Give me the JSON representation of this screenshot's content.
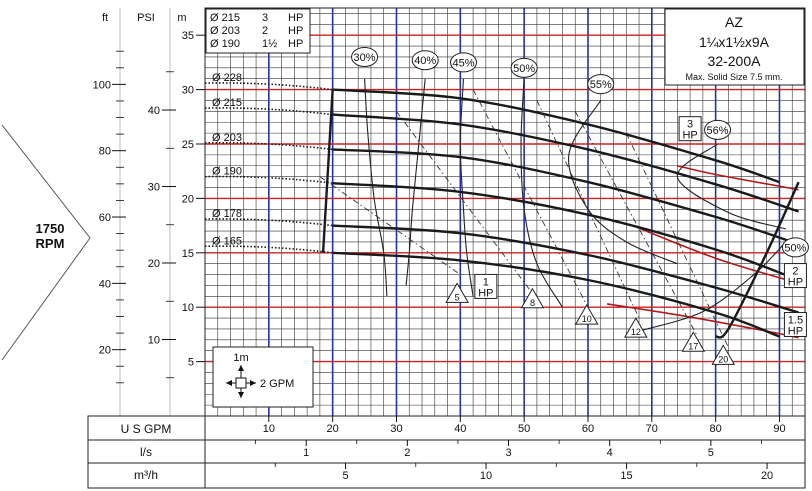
{
  "chart_data": {
    "type": "line",
    "model": {
      "name": "AZ",
      "size": "1¼x1½x9A",
      "code": "32-200A",
      "solid": "Max. Solid Size 7.5 mm."
    },
    "rpm": {
      "value": "1750",
      "unit": "RPM"
    },
    "motor_legend": [
      {
        "dia": "Ø 215",
        "hp": "3",
        "unit": "HP"
      },
      {
        "dia": "Ø 203",
        "hp": "2",
        "unit": "HP"
      },
      {
        "dia": "Ø 190",
        "hp": "1½",
        "unit": "HP"
      }
    ],
    "axes": {
      "head_m": {
        "label": "m",
        "ticks": [
          5,
          10,
          15,
          20,
          25,
          30,
          35
        ],
        "range": [
          0,
          37.5
        ]
      },
      "head_ft": {
        "label": "ft",
        "ticks": [
          20,
          40,
          60,
          80,
          100
        ]
      },
      "head_psi": {
        "label": "PSI",
        "ticks": [
          10,
          20,
          30,
          40
        ]
      },
      "flow_gpm": {
        "label": "U S GPM",
        "ticks": [
          10,
          20,
          30,
          40,
          50,
          60,
          70,
          80,
          90
        ],
        "range": [
          0,
          94
        ]
      },
      "flow_ls": {
        "label": "l/s",
        "ticks": [
          1,
          2,
          3,
          4,
          5
        ]
      },
      "flow_m3h": {
        "label": "m³/h",
        "ticks": [
          5,
          10,
          15,
          20
        ]
      }
    },
    "scale_box": {
      "head_label": "1m",
      "flow_label": "2 GPM"
    },
    "series": [
      {
        "name": "Ø 228",
        "x": [
          20,
          40,
          60,
          80,
          90
        ],
        "y": [
          30,
          29.2,
          26.8,
          23.5,
          21.5
        ]
      },
      {
        "name": "Ø 215",
        "x": [
          20,
          40,
          60,
          80,
          93
        ],
        "y": [
          27.7,
          26.8,
          24.5,
          21.3,
          18.8
        ]
      },
      {
        "name": "Ø 203",
        "x": [
          20,
          40,
          60,
          80,
          93
        ],
        "y": [
          24.5,
          23.8,
          21.5,
          18.3,
          15.8
        ]
      },
      {
        "name": "Ø 190",
        "x": [
          20,
          40,
          60,
          80,
          93
        ],
        "y": [
          21.4,
          20.6,
          18.5,
          15.3,
          12.5
        ]
      },
      {
        "name": "Ø 178",
        "x": [
          20,
          40,
          60,
          80,
          93
        ],
        "y": [
          17.5,
          16.8,
          14.8,
          11.8,
          9.5
        ]
      },
      {
        "name": "Ø 165",
        "x": [
          20,
          40,
          60,
          80,
          90
        ],
        "y": [
          15,
          14.3,
          12.5,
          9.5,
          7.3
        ]
      }
    ],
    "efficiency_labels": [
      {
        "text": "30%",
        "x": 25,
        "y": 33
      },
      {
        "text": "40%",
        "x": 34.5,
        "y": 32.7
      },
      {
        "text": "45%",
        "x": 40.5,
        "y": 32.5
      },
      {
        "text": "50%",
        "x": 50,
        "y": 32
      },
      {
        "text": "55%",
        "x": 62,
        "y": 30.5
      },
      {
        "text": "56%",
        "x": 80.3,
        "y": 26.3
      },
      {
        "text": "50%",
        "x": 92.5,
        "y": 15.5
      }
    ],
    "hp_labels": [
      {
        "hp": "3",
        "unit": "HP",
        "x": 76,
        "y": 26.5
      },
      {
        "hp": "2",
        "unit": "HP",
        "x": 92.5,
        "y": 13
      },
      {
        "hp": "1.5",
        "unit": "HP",
        "x": 92.5,
        "y": 8.5
      },
      {
        "hp": "1",
        "unit": "HP",
        "x": 44,
        "y": 12
      }
    ],
    "npsh_labels": [
      {
        "text": "5",
        "x": 39.5,
        "y": 11
      },
      {
        "text": "8",
        "x": 51.3,
        "y": 10.5
      },
      {
        "text": "10",
        "x": 59.8,
        "y": 9
      },
      {
        "text": "12",
        "x": 67.5,
        "y": 7.8
      },
      {
        "text": "17",
        "x": 76.5,
        "y": 6.5
      },
      {
        "text": "20",
        "x": 81.2,
        "y": 5.3
      }
    ]
  }
}
